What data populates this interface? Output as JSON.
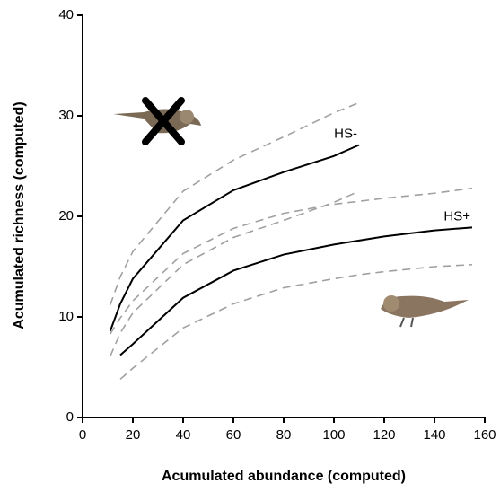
{
  "chart_data": {
    "type": "line",
    "x_label": "Acumulated abundance (computed)",
    "y_label": "Acumulated richness (computed)",
    "x": [
      11,
      15,
      20,
      40,
      60,
      80,
      100,
      110,
      120,
      140,
      155
    ],
    "series": [
      {
        "name": "HS-",
        "color": "#000000",
        "dashed": false,
        "values": [
          8.6,
          11.3,
          13.8,
          19.6,
          22.6,
          24.4,
          26.0,
          27.1,
          null,
          null,
          null
        ]
      },
      {
        "color": "#a0a0a0",
        "dashed": true,
        "values": [
          11.2,
          14.0,
          16.5,
          22.5,
          25.6,
          27.9,
          30.3,
          31.3,
          null,
          null,
          null
        ]
      },
      {
        "color": "#a0a0a0",
        "dashed": true,
        "values": [
          6.1,
          8.4,
          10.4,
          15.2,
          17.9,
          19.6,
          21.4,
          22.5,
          null,
          null,
          null
        ]
      },
      {
        "name": "HS+",
        "color": "#000000",
        "dashed": false,
        "values": [
          null,
          6.2,
          7.3,
          11.9,
          14.6,
          16.2,
          17.2,
          17.6,
          18.0,
          18.6,
          18.9
        ]
      },
      {
        "color": "#a0a0a0",
        "dashed": true,
        "values": [
          8.3,
          9.9,
          11.6,
          16.3,
          18.8,
          20.3,
          21.2,
          21.5,
          21.8,
          22.3,
          22.8
        ]
      },
      {
        "color": "#a0a0a0",
        "dashed": true,
        "values": [
          null,
          3.8,
          4.9,
          8.9,
          11.3,
          12.9,
          13.8,
          14.2,
          14.5,
          15.0,
          15.2
        ]
      }
    ],
    "xlim": [
      0,
      160
    ],
    "xticks": [
      0,
      20,
      40,
      60,
      80,
      100,
      120,
      140,
      160
    ],
    "ylim": [
      0,
      40
    ],
    "yticks": [
      0,
      10,
      20,
      30,
      40
    ]
  }
}
